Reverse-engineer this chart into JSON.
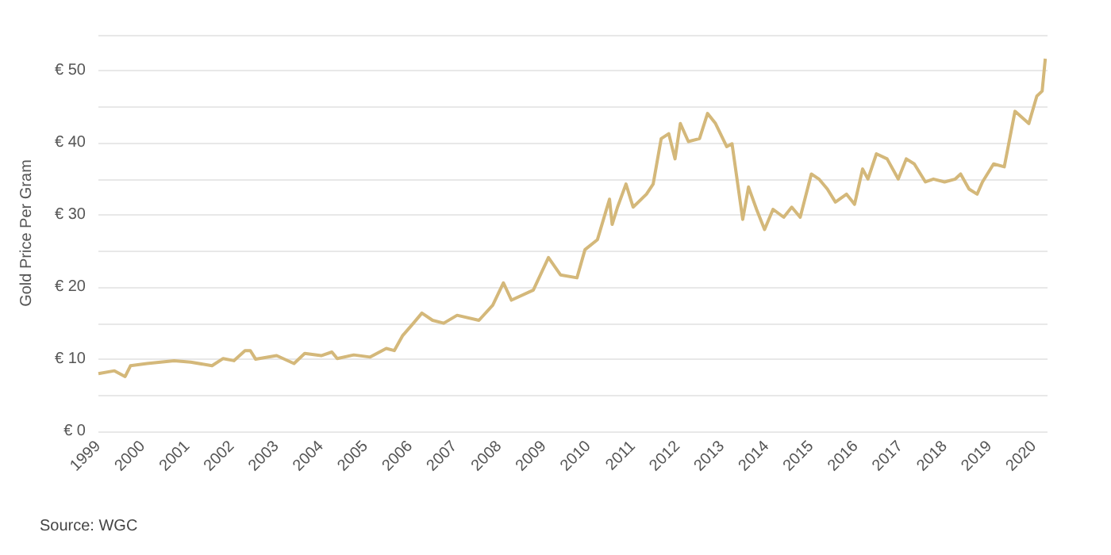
{
  "chart_data": {
    "type": "line",
    "ylabel": "Gold Price Per Gram",
    "annotations": [
      "Source: WGC"
    ],
    "x": [
      1999.0,
      1999.36,
      1999.6,
      1999.72,
      2000.09,
      2000.7,
      2001.07,
      2001.55,
      2001.8,
      2002.04,
      2002.29,
      2002.41,
      2002.53,
      2003.0,
      2003.39,
      2003.63,
      2004.0,
      2004.24,
      2004.36,
      2004.73,
      2005.1,
      2005.46,
      2005.64,
      2005.83,
      2006.07,
      2006.26,
      2006.5,
      2006.75,
      2007.05,
      2007.54,
      2007.85,
      2008.09,
      2008.27,
      2008.76,
      2009.1,
      2009.37,
      2009.74,
      2009.92,
      2010.2,
      2010.47,
      2010.53,
      2010.65,
      2010.84,
      2011.0,
      2011.3,
      2011.45,
      2011.63,
      2011.8,
      2011.94,
      2012.06,
      2012.24,
      2012.49,
      2012.67,
      2012.85,
      2013.1,
      2013.22,
      2013.46,
      2013.59,
      2013.77,
      2013.95,
      2014.14,
      2014.38,
      2014.56,
      2014.75,
      2015.0,
      2015.17,
      2015.36,
      2015.54,
      2015.79,
      2015.97,
      2016.15,
      2016.27,
      2016.46,
      2016.7,
      2016.95,
      2017.13,
      2017.31,
      2017.56,
      2017.74,
      2017.99,
      2018.23,
      2018.35,
      2018.54,
      2018.72,
      2018.84,
      2019.09,
      2019.33,
      2019.57,
      2019.88,
      2020.06,
      2020.18,
      2020.25
    ],
    "series": [
      {
        "color": "#d4b87a",
        "values": [
          8.0,
          8.4,
          7.6,
          9.1,
          9.4,
          9.8,
          9.6,
          9.1,
          10.1,
          9.8,
          11.2,
          11.2,
          10.0,
          10.5,
          9.4,
          10.8,
          10.5,
          11.0,
          10.1,
          10.6,
          10.3,
          11.5,
          11.2,
          13.3,
          15.0,
          16.4,
          15.4,
          15.0,
          16.1,
          15.4,
          17.5,
          20.6,
          18.2,
          19.6,
          24.1,
          21.7,
          21.3,
          25.2,
          26.6,
          32.2,
          28.7,
          31.1,
          34.3,
          31.1,
          32.9,
          34.3,
          40.6,
          41.3,
          37.8,
          42.7,
          40.2,
          40.6,
          44.1,
          42.7,
          39.5,
          39.9,
          29.4,
          33.9,
          30.8,
          28.0,
          30.8,
          29.7,
          31.1,
          29.7,
          35.7,
          35.0,
          33.6,
          31.8,
          32.9,
          31.5,
          36.4,
          35.0,
          38.5,
          37.8,
          35.0,
          37.8,
          37.1,
          34.6,
          35.0,
          34.6,
          35.0,
          35.7,
          33.6,
          32.9,
          34.6,
          37.1,
          36.7,
          44.4,
          42.7,
          46.5,
          47.2,
          51.7
        ]
      }
    ],
    "xlim": [
      1999,
      2020.3
    ],
    "xticks": [
      1999,
      2000,
      2001,
      2002,
      2003,
      2004,
      2005,
      2006,
      2007,
      2008,
      2009,
      2010,
      2011,
      2012,
      2013,
      2014,
      2015,
      2016,
      2017,
      2018,
      2019,
      2020
    ],
    "ylim": [
      0,
      55
    ],
    "yticks": [
      {
        "value": 0,
        "label": "€ 0"
      },
      {
        "value": 5,
        "label": null
      },
      {
        "value": 10,
        "label": "€ 10"
      },
      {
        "value": 15,
        "label": null
      },
      {
        "value": 20,
        "label": "€ 20"
      },
      {
        "value": 25,
        "label": null
      },
      {
        "value": 30,
        "label": "€ 30"
      },
      {
        "value": 35,
        "label": null
      },
      {
        "value": 40,
        "label": "€ 40"
      },
      {
        "value": 45,
        "label": null
      },
      {
        "value": 50,
        "label": "€ 50"
      },
      {
        "value": 55,
        "label": null
      }
    ],
    "grid": "y",
    "marker": "none",
    "line_style": "solid"
  }
}
